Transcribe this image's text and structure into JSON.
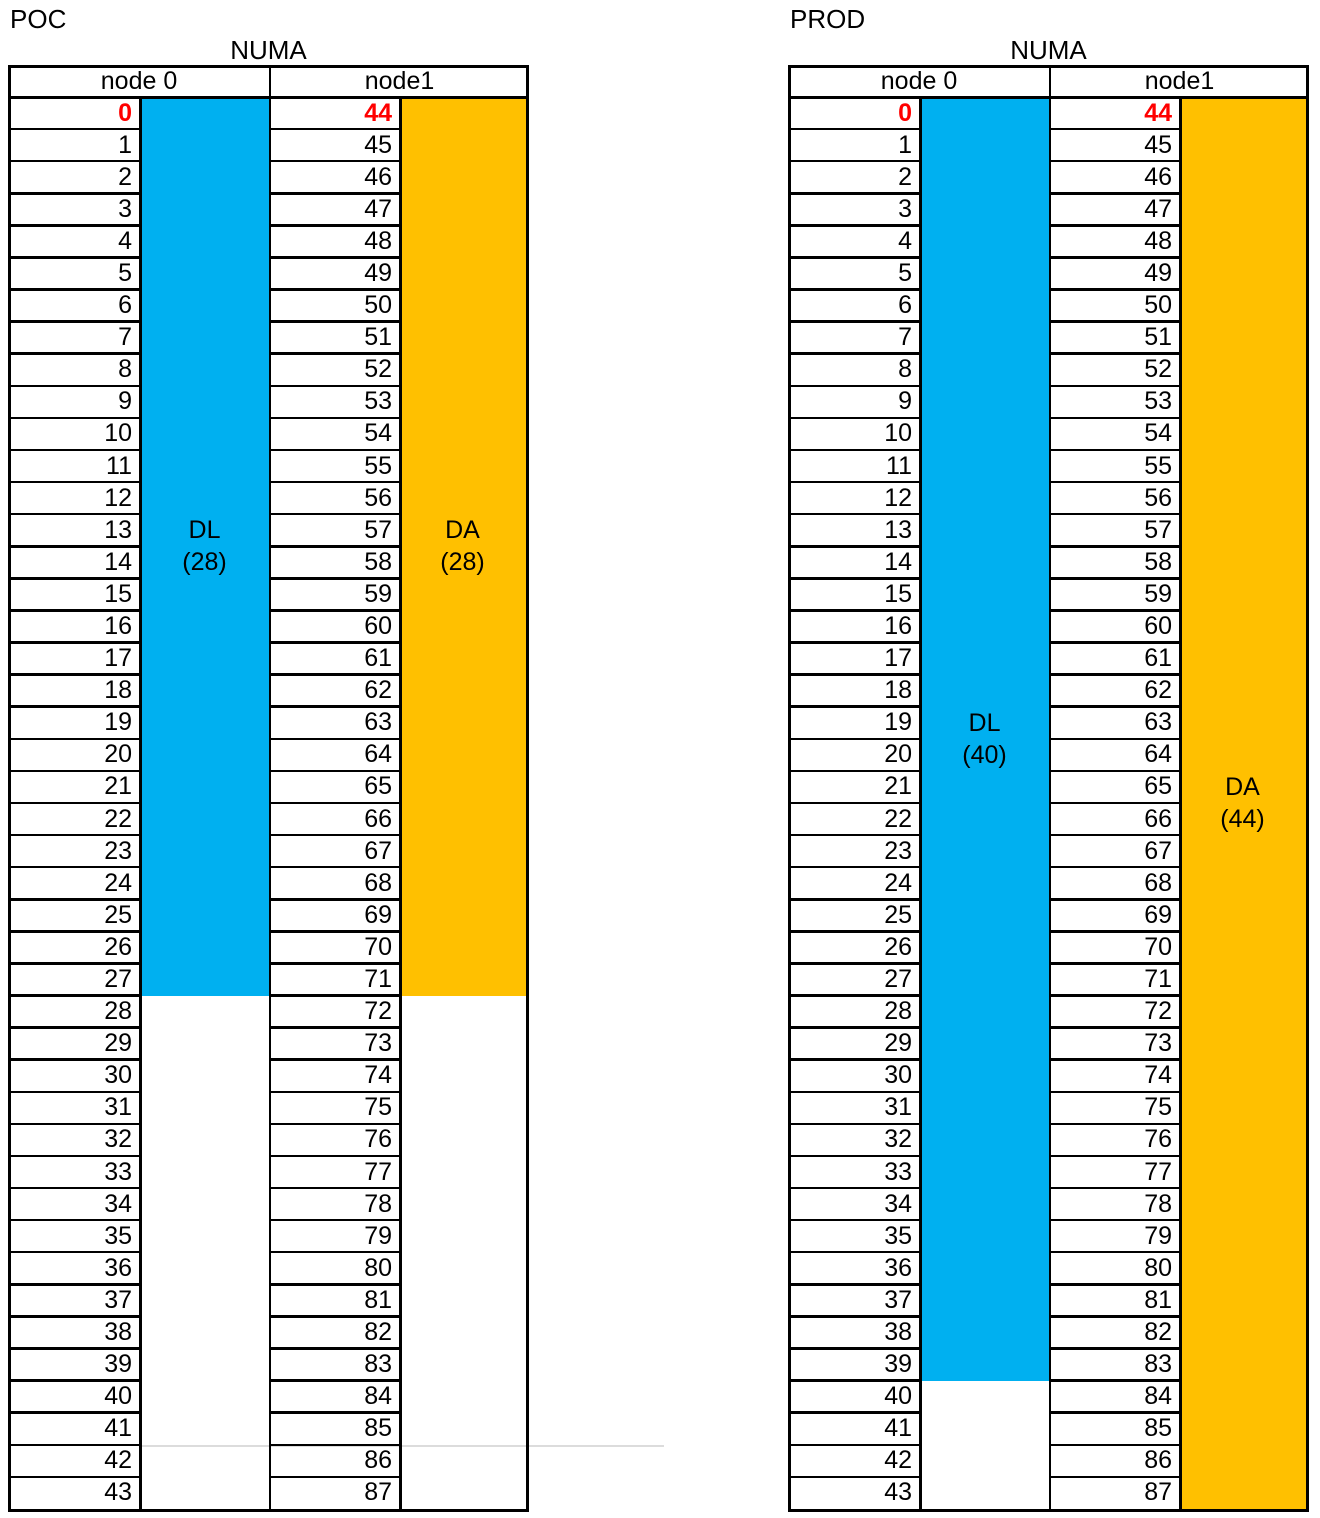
{
  "page": {
    "background": "#FFFFFF"
  },
  "colors": {
    "dl_band": "#00B0F0",
    "da_band": "#FFC000",
    "first_cpu_id": "#FF0000",
    "border": "#000000",
    "cell_text": "#000000",
    "band_label_text": "#000000"
  },
  "cpu_ids_node0": [
    0,
    1,
    2,
    3,
    4,
    5,
    6,
    7,
    8,
    9,
    10,
    11,
    12,
    13,
    14,
    15,
    16,
    17,
    18,
    19,
    20,
    21,
    22,
    23,
    24,
    25,
    26,
    27,
    28,
    29,
    30,
    31,
    32,
    33,
    34,
    35,
    36,
    37,
    38,
    39,
    40,
    41,
    42,
    43
  ],
  "cpu_ids_node1": [
    44,
    45,
    46,
    47,
    48,
    49,
    50,
    51,
    52,
    53,
    54,
    55,
    56,
    57,
    58,
    59,
    60,
    61,
    62,
    63,
    64,
    65,
    66,
    67,
    68,
    69,
    70,
    71,
    72,
    73,
    74,
    75,
    76,
    77,
    78,
    79,
    80,
    81,
    82,
    83,
    84,
    85,
    86,
    87
  ],
  "tables": [
    {
      "title": "POC",
      "numa_label": "NUMA",
      "columns": [
        {
          "header": "node 0",
          "ids_ref": "cpu_ids_node0",
          "band": {
            "name": "DL",
            "count_label": "(28)",
            "span_rows": 28,
            "color_key": "dl_band"
          }
        },
        {
          "header": "node1",
          "ids_ref": "cpu_ids_node1",
          "band": {
            "name": "DA",
            "count_label": "(28)",
            "span_rows": 28,
            "color_key": "da_band"
          }
        }
      ]
    },
    {
      "title": "PROD",
      "numa_label": "NUMA",
      "columns": [
        {
          "header": "node 0",
          "ids_ref": "cpu_ids_node0",
          "band": {
            "name": "DL",
            "count_label": "(40)",
            "span_rows": 40,
            "color_key": "dl_band"
          }
        },
        {
          "header": "node1",
          "ids_ref": "cpu_ids_node1",
          "band": {
            "name": "DA",
            "count_label": "(44)",
            "span_rows": 44,
            "color_key": "da_band"
          }
        }
      ]
    }
  ]
}
